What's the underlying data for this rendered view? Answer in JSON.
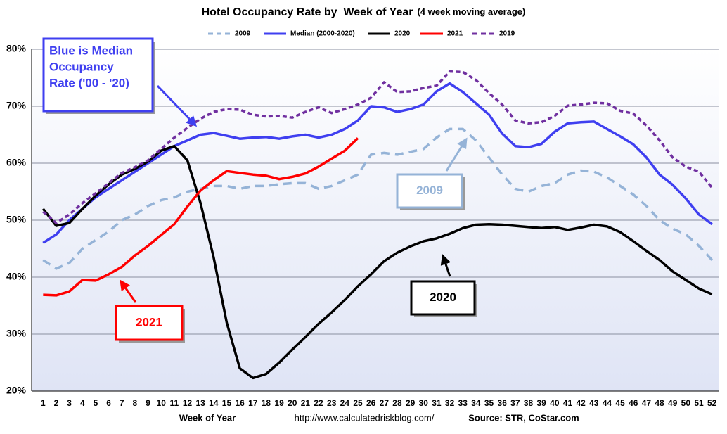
{
  "chart_data": {
    "type": "line",
    "title": "Hotel Occupancy Rate by  Week of Year",
    "subtitle": "(4 week moving average)",
    "x_label": "Week of Year",
    "url": "http://www.calculatedriskblog.com/",
    "source": "Source: STR, CoStar.com",
    "categories": [
      1,
      2,
      3,
      4,
      5,
      6,
      7,
      8,
      9,
      10,
      11,
      12,
      13,
      14,
      15,
      16,
      17,
      18,
      19,
      20,
      21,
      22,
      23,
      24,
      25,
      26,
      27,
      28,
      29,
      30,
      31,
      32,
      33,
      34,
      35,
      36,
      37,
      38,
      39,
      40,
      41,
      42,
      43,
      44,
      45,
      46,
      47,
      48,
      49,
      50,
      51,
      52
    ],
    "ylim": [
      20,
      80
    ],
    "yticks": [
      {
        "value": 20,
        "label": "20%"
      },
      {
        "value": 30,
        "label": "30%"
      },
      {
        "value": 40,
        "label": "40%"
      },
      {
        "value": 50,
        "label": "50%"
      },
      {
        "value": 60,
        "label": "60%"
      },
      {
        "value": 70,
        "label": "70%"
      },
      {
        "value": 80,
        "label": "80%"
      }
    ],
    "grid": true,
    "legend": "top",
    "series": [
      {
        "name": "2009",
        "color": "#95b3d7",
        "dashed": true,
        "values": [
          43,
          41.5,
          42.5,
          45,
          46.5,
          48,
          50,
          51,
          52.5,
          53.5,
          54,
          55,
          55.5,
          56,
          56,
          55.5,
          56,
          56,
          56.3,
          56.5,
          56.5,
          55.5,
          56,
          57,
          58,
          61.5,
          61.8,
          61.5,
          62,
          62.5,
          64.5,
          66,
          66,
          64,
          61,
          58,
          55.5,
          55,
          56,
          56.5,
          58,
          58.7,
          58.5,
          57.5,
          56,
          54.5,
          52.5,
          50,
          48.5,
          47.5,
          45.5,
          43
        ]
      },
      {
        "name": "Median (2000-2020)",
        "color": "#3f3ff0",
        "dashed": false,
        "values": [
          46,
          47.5,
          50,
          52,
          54,
          55.5,
          57,
          58.5,
          60,
          61.5,
          63,
          64,
          65,
          65.3,
          64.8,
          64.3,
          64.5,
          64.6,
          64.3,
          64.7,
          65,
          64.5,
          65,
          66,
          67.5,
          70,
          69.8,
          69,
          69.5,
          70.3,
          72.6,
          74,
          72.5,
          70.5,
          68.5,
          65.2,
          63,
          62.8,
          63.4,
          65.5,
          67,
          67.2,
          67.3,
          66,
          64.7,
          63.3,
          61,
          58,
          56.2,
          53.8,
          51,
          49.3
        ]
      },
      {
        "name": "2020",
        "color": "#000000",
        "dashed": false,
        "values": [
          52,
          49,
          49.5,
          52,
          54.3,
          56.3,
          58,
          59,
          60.3,
          62.2,
          63,
          60.5,
          53,
          43.5,
          32,
          24,
          22.3,
          23,
          25,
          27.3,
          29.5,
          31.8,
          33.8,
          36,
          38.4,
          40.5,
          42.8,
          44.3,
          45.4,
          46.3,
          46.8,
          47.6,
          48.6,
          49.2,
          49.3,
          49.2,
          49,
          48.8,
          48.6,
          48.8,
          48.3,
          48.7,
          49.2,
          48.9,
          47.9,
          46.3,
          44.6,
          43,
          41,
          39.5,
          38,
          37
        ]
      },
      {
        "name": "2021",
        "color": "#ff0000",
        "dashed": false,
        "values": [
          36.9,
          36.8,
          37.5,
          39.5,
          39.4,
          40.5,
          41.8,
          43.8,
          45.5,
          47.4,
          49.3,
          52.4,
          55.2,
          57,
          58.6,
          58.3,
          58,
          57.8,
          57.2,
          57.6,
          58.2,
          59.4,
          60.8,
          62.2,
          64.4,
          null,
          null,
          null,
          null,
          null,
          null,
          null,
          null,
          null,
          null,
          null,
          null,
          null,
          null,
          null,
          null,
          null,
          null,
          null,
          null,
          null,
          null,
          null,
          null,
          null,
          null,
          null
        ]
      },
      {
        "name": "2019",
        "color": "#7030a0",
        "dashed": true,
        "values": [
          51.5,
          49.5,
          51,
          53,
          54.7,
          56.5,
          58.3,
          59.3,
          60.5,
          62.5,
          64.5,
          66.2,
          67.8,
          69,
          69.5,
          69.4,
          68.5,
          68.2,
          68.3,
          68,
          69,
          69.8,
          68.8,
          69.5,
          70.3,
          71.5,
          74.2,
          72.5,
          72.6,
          73.2,
          73.6,
          76.1,
          76,
          74.6,
          72.3,
          70.3,
          67.5,
          67,
          67.2,
          68.3,
          70.1,
          70.3,
          70.6,
          70.5,
          69.2,
          68.7,
          66.6,
          64,
          61,
          59.4,
          58.5,
          55.7
        ]
      }
    ],
    "annotations": [
      {
        "lines": [
          "Blue is Median",
          "Occupancy",
          "Rate ('00 - '20)"
        ],
        "color": "#3f3ff0"
      },
      {
        "lines": [
          "2009"
        ],
        "color": "#95b3d7"
      },
      {
        "lines": [
          "2021"
        ],
        "color": "#ff0000"
      },
      {
        "lines": [
          "2020"
        ],
        "color": "#000000"
      }
    ]
  }
}
